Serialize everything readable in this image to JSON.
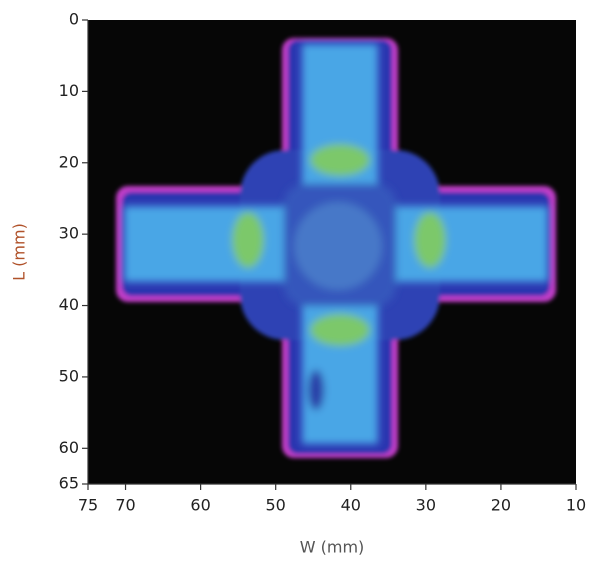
{
  "chart_data": {
    "type": "image",
    "xlabel": "W (mm)",
    "ylabel": "L (mm)",
    "xlim": [
      75,
      10
    ],
    "ylim": [
      65,
      0
    ],
    "xticks": [
      75,
      70,
      60,
      50,
      40,
      30,
      20,
      10
    ],
    "yticks": [
      0,
      10,
      20,
      30,
      40,
      50,
      60,
      65
    ]
  }
}
